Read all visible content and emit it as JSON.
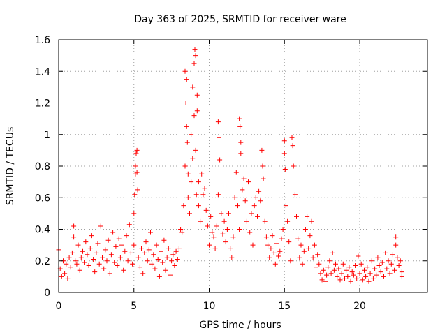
{
  "chart_data": {
    "type": "scatter",
    "title": "Day 363 of 2025, SRMTID for receiver ware",
    "xlabel": "GPS time / hours",
    "ylabel": "SRMTID / TECUs",
    "xlim": [
      0,
      24.5
    ],
    "ylim": [
      0,
      1.6
    ],
    "xticks": [
      0,
      5,
      10,
      15,
      20
    ],
    "xtick_labels": [
      "0",
      "5",
      "10",
      "15",
      "20"
    ],
    "yticks": [
      0,
      0.2,
      0.4,
      0.6,
      0.8,
      1.0,
      1.2,
      1.4,
      1.6
    ],
    "ytick_labels": [
      "0",
      "0.2",
      "0.4",
      "0.6",
      "0.8",
      "1",
      "1.2",
      "1.4",
      "1.6"
    ],
    "grid": true,
    "marker": "plus",
    "color": "#ff0000",
    "series": [
      {
        "name": "SRMTID",
        "points": [
          [
            0.0,
            0.27
          ],
          [
            0.1,
            0.15
          ],
          [
            0.2,
            0.1
          ],
          [
            0.3,
            0.2
          ],
          [
            0.4,
            0.12
          ],
          [
            0.5,
            0.18
          ],
          [
            0.6,
            0.09
          ],
          [
            0.7,
            0.22
          ],
          [
            0.8,
            0.16
          ],
          [
            0.9,
            0.25
          ],
          [
            1.0,
            0.35
          ],
          [
            1.0,
            0.42
          ],
          [
            1.1,
            0.2
          ],
          [
            1.2,
            0.18
          ],
          [
            1.3,
            0.3
          ],
          [
            1.4,
            0.14
          ],
          [
            1.5,
            0.22
          ],
          [
            1.6,
            0.26
          ],
          [
            1.7,
            0.19
          ],
          [
            1.8,
            0.32
          ],
          [
            1.9,
            0.24
          ],
          [
            2.0,
            0.17
          ],
          [
            2.1,
            0.28
          ],
          [
            2.2,
            0.36
          ],
          [
            2.3,
            0.21
          ],
          [
            2.4,
            0.13
          ],
          [
            2.5,
            0.25
          ],
          [
            2.6,
            0.31
          ],
          [
            2.7,
            0.18
          ],
          [
            2.8,
            0.42
          ],
          [
            2.9,
            0.22
          ],
          [
            3.0,
            0.15
          ],
          [
            3.1,
            0.27
          ],
          [
            3.2,
            0.2
          ],
          [
            3.3,
            0.33
          ],
          [
            3.4,
            0.12
          ],
          [
            3.5,
            0.24
          ],
          [
            3.6,
            0.38
          ],
          [
            3.7,
            0.19
          ],
          [
            3.8,
            0.29
          ],
          [
            3.9,
            0.17
          ],
          [
            4.0,
            0.34
          ],
          [
            4.1,
            0.22
          ],
          [
            4.2,
            0.3
          ],
          [
            4.3,
            0.14
          ],
          [
            4.4,
            0.26
          ],
          [
            4.5,
            0.36
          ],
          [
            4.6,
            0.2
          ],
          [
            4.7,
            0.43
          ],
          [
            4.8,
            0.25
          ],
          [
            4.9,
            0.18
          ],
          [
            5.0,
            0.3
          ],
          [
            5.0,
            0.5
          ],
          [
            5.05,
            0.62
          ],
          [
            5.1,
            0.75
          ],
          [
            5.1,
            0.8
          ],
          [
            5.15,
            0.88
          ],
          [
            5.2,
            0.9
          ],
          [
            5.2,
            0.76
          ],
          [
            5.25,
            0.65
          ],
          [
            5.3,
            0.22
          ],
          [
            5.4,
            0.16
          ],
          [
            5.5,
            0.28
          ],
          [
            5.6,
            0.12
          ],
          [
            5.7,
            0.25
          ],
          [
            5.8,
            0.32
          ],
          [
            5.9,
            0.2
          ],
          [
            6.0,
            0.27
          ],
          [
            6.1,
            0.38
          ],
          [
            6.2,
            0.18
          ],
          [
            6.3,
            0.24
          ],
          [
            6.4,
            0.15
          ],
          [
            6.5,
            0.3
          ],
          [
            6.6,
            0.21
          ],
          [
            6.7,
            0.1
          ],
          [
            6.8,
            0.26
          ],
          [
            6.9,
            0.19
          ],
          [
            7.0,
            0.33
          ],
          [
            7.1,
            0.14
          ],
          [
            7.2,
            0.22
          ],
          [
            7.3,
            0.28
          ],
          [
            7.4,
            0.11
          ],
          [
            7.5,
            0.2
          ],
          [
            7.6,
            0.24
          ],
          [
            7.7,
            0.17
          ],
          [
            7.8,
            0.26
          ],
          [
            7.9,
            0.21
          ],
          [
            8.0,
            0.28
          ],
          [
            8.1,
            0.4
          ],
          [
            8.2,
            0.38
          ],
          [
            8.3,
            0.55
          ],
          [
            8.4,
            0.8
          ],
          [
            8.4,
            1.4
          ],
          [
            8.45,
            1.2
          ],
          [
            8.5,
            1.35
          ],
          [
            8.5,
            1.05
          ],
          [
            8.55,
            0.95
          ],
          [
            8.6,
            0.75
          ],
          [
            8.6,
            0.6
          ],
          [
            8.7,
            0.5
          ],
          [
            8.8,
            0.7
          ],
          [
            8.8,
            1.0
          ],
          [
            8.9,
            1.3
          ],
          [
            8.9,
            0.85
          ],
          [
            9.0,
            1.45
          ],
          [
            9.0,
            1.12
          ],
          [
            9.05,
            1.54
          ],
          [
            9.1,
            1.5
          ],
          [
            9.1,
            0.9
          ],
          [
            9.15,
            0.62
          ],
          [
            9.2,
            1.15
          ],
          [
            9.2,
            1.25
          ],
          [
            9.3,
            0.7
          ],
          [
            9.3,
            0.55
          ],
          [
            9.4,
            0.45
          ],
          [
            9.5,
            0.75
          ],
          [
            9.6,
            0.62
          ],
          [
            9.7,
            0.66
          ],
          [
            9.8,
            0.52
          ],
          [
            9.9,
            0.42
          ],
          [
            10.0,
            0.3
          ],
          [
            10.1,
            0.48
          ],
          [
            10.2,
            0.38
          ],
          [
            10.3,
            0.35
          ],
          [
            10.4,
            0.28
          ],
          [
            10.5,
            0.42
          ],
          [
            10.6,
            0.62
          ],
          [
            10.6,
            1.08
          ],
          [
            10.65,
            0.98
          ],
          [
            10.7,
            0.84
          ],
          [
            10.8,
            0.5
          ],
          [
            10.9,
            0.37
          ],
          [
            11.0,
            0.45
          ],
          [
            11.1,
            0.32
          ],
          [
            11.2,
            0.4
          ],
          [
            11.3,
            0.5
          ],
          [
            11.4,
            0.28
          ],
          [
            11.5,
            0.22
          ],
          [
            11.6,
            0.35
          ],
          [
            11.7,
            0.6
          ],
          [
            11.8,
            0.76
          ],
          [
            11.9,
            0.55
          ],
          [
            12.0,
            0.4
          ],
          [
            12.0,
            1.1
          ],
          [
            12.05,
            1.05
          ],
          [
            12.1,
            0.95
          ],
          [
            12.1,
            0.88
          ],
          [
            12.2,
            0.65
          ],
          [
            12.3,
            0.72
          ],
          [
            12.4,
            0.58
          ],
          [
            12.5,
            0.45
          ],
          [
            12.6,
            0.7
          ],
          [
            12.7,
            0.38
          ],
          [
            12.8,
            0.5
          ],
          [
            12.9,
            0.3
          ],
          [
            13.0,
            0.55
          ],
          [
            13.1,
            0.6
          ],
          [
            13.2,
            0.48
          ],
          [
            13.3,
            0.64
          ],
          [
            13.4,
            0.58
          ],
          [
            13.5,
            0.9
          ],
          [
            13.55,
            0.8
          ],
          [
            13.6,
            0.72
          ],
          [
            13.7,
            0.45
          ],
          [
            13.8,
            0.35
          ],
          [
            13.9,
            0.3
          ],
          [
            14.0,
            0.22
          ],
          [
            14.1,
            0.28
          ],
          [
            14.2,
            0.36
          ],
          [
            14.3,
            0.25
          ],
          [
            14.4,
            0.18
          ],
          [
            14.5,
            0.31
          ],
          [
            14.6,
            0.23
          ],
          [
            14.7,
            0.26
          ],
          [
            14.8,
            0.34
          ],
          [
            14.9,
            0.4
          ],
          [
            15.0,
            0.96
          ],
          [
            15.0,
            0.88
          ],
          [
            15.05,
            0.78
          ],
          [
            15.1,
            0.55
          ],
          [
            15.2,
            0.45
          ],
          [
            15.3,
            0.32
          ],
          [
            15.4,
            0.2
          ],
          [
            15.5,
            0.98
          ],
          [
            15.55,
            0.93
          ],
          [
            15.6,
            0.8
          ],
          [
            15.7,
            0.62
          ],
          [
            15.8,
            0.48
          ],
          [
            15.9,
            0.34
          ],
          [
            16.0,
            0.22
          ],
          [
            16.1,
            0.3
          ],
          [
            16.2,
            0.18
          ],
          [
            16.3,
            0.26
          ],
          [
            16.4,
            0.4
          ],
          [
            16.5,
            0.48
          ],
          [
            16.6,
            0.28
          ],
          [
            16.7,
            0.36
          ],
          [
            16.8,
            0.45
          ],
          [
            16.9,
            0.22
          ],
          [
            17.0,
            0.3
          ],
          [
            17.1,
            0.16
          ],
          [
            17.2,
            0.24
          ],
          [
            17.3,
            0.18
          ],
          [
            17.4,
            0.12
          ],
          [
            17.5,
            0.08
          ],
          [
            17.6,
            0.14
          ],
          [
            17.7,
            0.07
          ],
          [
            17.8,
            0.11
          ],
          [
            17.9,
            0.16
          ],
          [
            18.0,
            0.2
          ],
          [
            18.1,
            0.12
          ],
          [
            18.2,
            0.25
          ],
          [
            18.3,
            0.14
          ],
          [
            18.4,
            0.18
          ],
          [
            18.5,
            0.1
          ],
          [
            18.6,
            0.15
          ],
          [
            18.7,
            0.08
          ],
          [
            18.8,
            0.12
          ],
          [
            18.9,
            0.18
          ],
          [
            19.0,
            0.09
          ],
          [
            19.1,
            0.14
          ],
          [
            19.2,
            0.1
          ],
          [
            19.3,
            0.16
          ],
          [
            19.4,
            0.07
          ],
          [
            19.5,
            0.13
          ],
          [
            19.6,
            0.11
          ],
          [
            19.7,
            0.17
          ],
          [
            19.8,
            0.09
          ],
          [
            19.9,
            0.23
          ],
          [
            20.0,
            0.12
          ],
          [
            20.1,
            0.18
          ],
          [
            20.2,
            0.08
          ],
          [
            20.3,
            0.14
          ],
          [
            20.4,
            0.1
          ],
          [
            20.5,
            0.16
          ],
          [
            20.6,
            0.07
          ],
          [
            20.7,
            0.12
          ],
          [
            20.8,
            0.2
          ],
          [
            20.9,
            0.09
          ],
          [
            21.0,
            0.15
          ],
          [
            21.1,
            0.11
          ],
          [
            21.2,
            0.22
          ],
          [
            21.3,
            0.17
          ],
          [
            21.4,
            0.13
          ],
          [
            21.5,
            0.19
          ],
          [
            21.6,
            0.1
          ],
          [
            21.7,
            0.25
          ],
          [
            21.8,
            0.15
          ],
          [
            21.9,
            0.2
          ],
          [
            22.0,
            0.12
          ],
          [
            22.1,
            0.18
          ],
          [
            22.2,
            0.24
          ],
          [
            22.3,
            0.14
          ],
          [
            22.4,
            0.35
          ],
          [
            22.4,
            0.3
          ],
          [
            22.5,
            0.22
          ],
          [
            22.6,
            0.17
          ],
          [
            22.7,
            0.2
          ],
          [
            22.8,
            0.13
          ],
          [
            22.8,
            0.1
          ]
        ]
      }
    ]
  }
}
